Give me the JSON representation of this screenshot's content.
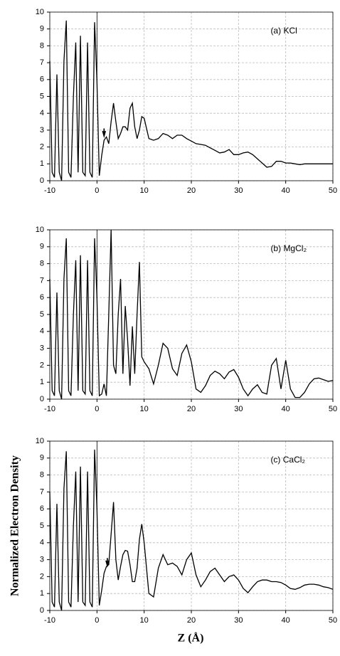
{
  "chart_data": [
    {
      "type": "line",
      "annotation": "(a) KCl",
      "color": "#000000",
      "grid": true,
      "xlim": [
        -10,
        50
      ],
      "xticks": [
        -10,
        0,
        10,
        20,
        30,
        40,
        50
      ],
      "ylim": [
        0,
        10
      ],
      "yticks": [
        0,
        1,
        2,
        3,
        4,
        5,
        6,
        7,
        8,
        9,
        10
      ],
      "x": [
        -10,
        -9.5,
        -9,
        -8.5,
        -8,
        -7.5,
        -7,
        -6.5,
        -6,
        -5.5,
        -5,
        -4.5,
        -4,
        -3.5,
        -3,
        -2.5,
        -2,
        -1.5,
        -1,
        -0.5,
        0,
        0.5,
        1,
        1.5,
        2,
        2.5,
        3,
        3.5,
        4,
        4.5,
        5,
        5.5,
        6,
        6.5,
        7,
        7.5,
        8,
        8.5,
        9,
        9.5,
        10,
        11,
        12,
        13,
        14,
        15,
        16,
        17,
        18,
        19,
        20,
        21,
        22,
        23,
        24,
        25,
        26,
        27,
        28,
        29,
        30,
        31,
        32,
        33,
        34,
        35,
        36,
        37,
        38,
        39,
        40,
        41,
        42,
        43,
        44,
        45,
        46,
        47,
        48,
        49,
        50
      ],
      "values": [
        7.1,
        0.5,
        0.2,
        6.3,
        0.5,
        0,
        7.1,
        9.5,
        0.5,
        0.2,
        5,
        8.2,
        0.5,
        8.6,
        0.5,
        0.3,
        8.2,
        0.5,
        0.2,
        9.4,
        5.9,
        0.3,
        1.5,
        2.4,
        2.6,
        2.2,
        3.5,
        4.6,
        3.5,
        2.5,
        2.8,
        3.2,
        3.2,
        3.0,
        4.3,
        4.6,
        3.2,
        2.5,
        3,
        3.8,
        3.7,
        2.5,
        2.4,
        2.5,
        2.8,
        2.7,
        2.5,
        2.7,
        2.7,
        2.5,
        2.35,
        2.2,
        2.15,
        2.1,
        1.95,
        1.8,
        1.65,
        1.7,
        1.85,
        1.55,
        1.55,
        1.65,
        1.7,
        1.55,
        1.3,
        1.05,
        0.8,
        0.85,
        1.15,
        1.15,
        1.05,
        1.05,
        1.0,
        0.95,
        1.0,
        1.0,
        1.0,
        1.0,
        1.0,
        1.0,
        1.0
      ]
    },
    {
      "type": "line",
      "annotation": "(b) MgCl₂",
      "color": "#000000",
      "grid": true,
      "xlim": [
        -10,
        50
      ],
      "xticks": [
        -10,
        0,
        10,
        20,
        30,
        40,
        50
      ],
      "ylim": [
        0,
        10
      ],
      "yticks": [
        0,
        1,
        2,
        3,
        4,
        5,
        6,
        7,
        8,
        9,
        10
      ],
      "x": [
        -10,
        -9.5,
        -9,
        -8.5,
        -8,
        -7.5,
        -7,
        -6.5,
        -6,
        -5.5,
        -5,
        -4.5,
        -4,
        -3.5,
        -3,
        -2.5,
        -2,
        -1.5,
        -1,
        -0.5,
        0,
        0.5,
        1,
        1.5,
        2,
        2.5,
        3,
        3.5,
        4,
        4.5,
        5,
        5.5,
        6,
        6.5,
        7,
        7.5,
        8,
        8.5,
        9,
        9.5,
        10,
        11,
        12,
        13,
        14,
        15,
        16,
        17,
        18,
        19,
        20,
        21,
        22,
        23,
        24,
        25,
        26,
        27,
        28,
        29,
        30,
        31,
        32,
        33,
        34,
        35,
        36,
        37,
        38,
        39,
        40,
        41,
        42,
        43,
        44,
        45,
        46,
        47,
        48,
        49,
        50
      ],
      "values": [
        7.1,
        0.5,
        0.2,
        6.3,
        0.5,
        0,
        7.1,
        9.5,
        0.5,
        0.2,
        5,
        8.2,
        0.5,
        8.5,
        0.5,
        0.3,
        8.2,
        0.5,
        0.2,
        9.5,
        6.0,
        0.2,
        0.3,
        0.9,
        0.2,
        5,
        10,
        2,
        1.5,
        5,
        7.1,
        1.5,
        5.5,
        3.5,
        0.8,
        4.3,
        1.5,
        5,
        8.1,
        2.5,
        2.2,
        1.8,
        0.9,
        2,
        3.3,
        3.0,
        1.8,
        1.4,
        2.7,
        3.2,
        2.2,
        0.6,
        0.4,
        0.8,
        1.4,
        1.65,
        1.5,
        1.2,
        1.6,
        1.75,
        1.3,
        0.6,
        0.2,
        0.6,
        0.85,
        0.4,
        0.3,
        2.0,
        2.4,
        0.6,
        2.3,
        0.6,
        0.1,
        0.1,
        0.4,
        0.9,
        1.2,
        1.25,
        1.15,
        1.05,
        1.1
      ]
    },
    {
      "type": "line",
      "annotation": "(c) CaCl₂",
      "color": "#000000",
      "grid": true,
      "xlabel": "Z (Å)",
      "ylabel": "Normalized Electron Density",
      "xlim": [
        -10,
        50
      ],
      "xticks": [
        -10,
        0,
        10,
        20,
        30,
        40,
        50
      ],
      "ylim": [
        0,
        10
      ],
      "yticks": [
        0,
        1,
        2,
        3,
        4,
        5,
        6,
        7,
        8,
        9,
        10
      ],
      "x": [
        -10,
        -9.5,
        -9,
        -8.5,
        -8,
        -7.5,
        -7,
        -6.5,
        -6,
        -5.5,
        -5,
        -4.5,
        -4,
        -3.5,
        -3,
        -2.5,
        -2,
        -1.5,
        -1,
        -0.5,
        0,
        0.5,
        1,
        1.5,
        2,
        2.5,
        3,
        3.5,
        4,
        4.5,
        5,
        5.5,
        6,
        6.5,
        7,
        7.5,
        8,
        8.5,
        9,
        9.5,
        10,
        11,
        12,
        13,
        14,
        15,
        16,
        17,
        18,
        19,
        20,
        21,
        22,
        23,
        24,
        25,
        26,
        27,
        28,
        29,
        30,
        31,
        32,
        33,
        34,
        35,
        36,
        37,
        38,
        39,
        40,
        41,
        42,
        43,
        44,
        45,
        46,
        47,
        48,
        49,
        50
      ],
      "values": [
        7.0,
        0.5,
        0.2,
        6.3,
        0.5,
        0,
        7.2,
        9.4,
        0.5,
        0.2,
        5,
        8.2,
        0.5,
        8.5,
        0.5,
        0.3,
        8.2,
        0.5,
        0.2,
        9.5,
        6.0,
        0.3,
        1.2,
        2.2,
        2.6,
        2.7,
        4.5,
        6.4,
        3.0,
        1.8,
        2.6,
        3.3,
        3.55,
        3.5,
        2.7,
        1.7,
        1.7,
        2.5,
        4.2,
        5.1,
        4.0,
        1,
        0.8,
        2.5,
        3.3,
        2.7,
        2.8,
        2.6,
        2.1,
        3.0,
        3.4,
        2.1,
        1.4,
        1.8,
        2.3,
        2.5,
        2.1,
        1.7,
        2.0,
        2.1,
        1.8,
        1.3,
        1.05,
        1.4,
        1.7,
        1.8,
        1.8,
        1.7,
        1.7,
        1.65,
        1.5,
        1.3,
        1.25,
        1.35,
        1.5,
        1.55,
        1.55,
        1.5,
        1.4,
        1.35,
        1.25
      ]
    }
  ]
}
